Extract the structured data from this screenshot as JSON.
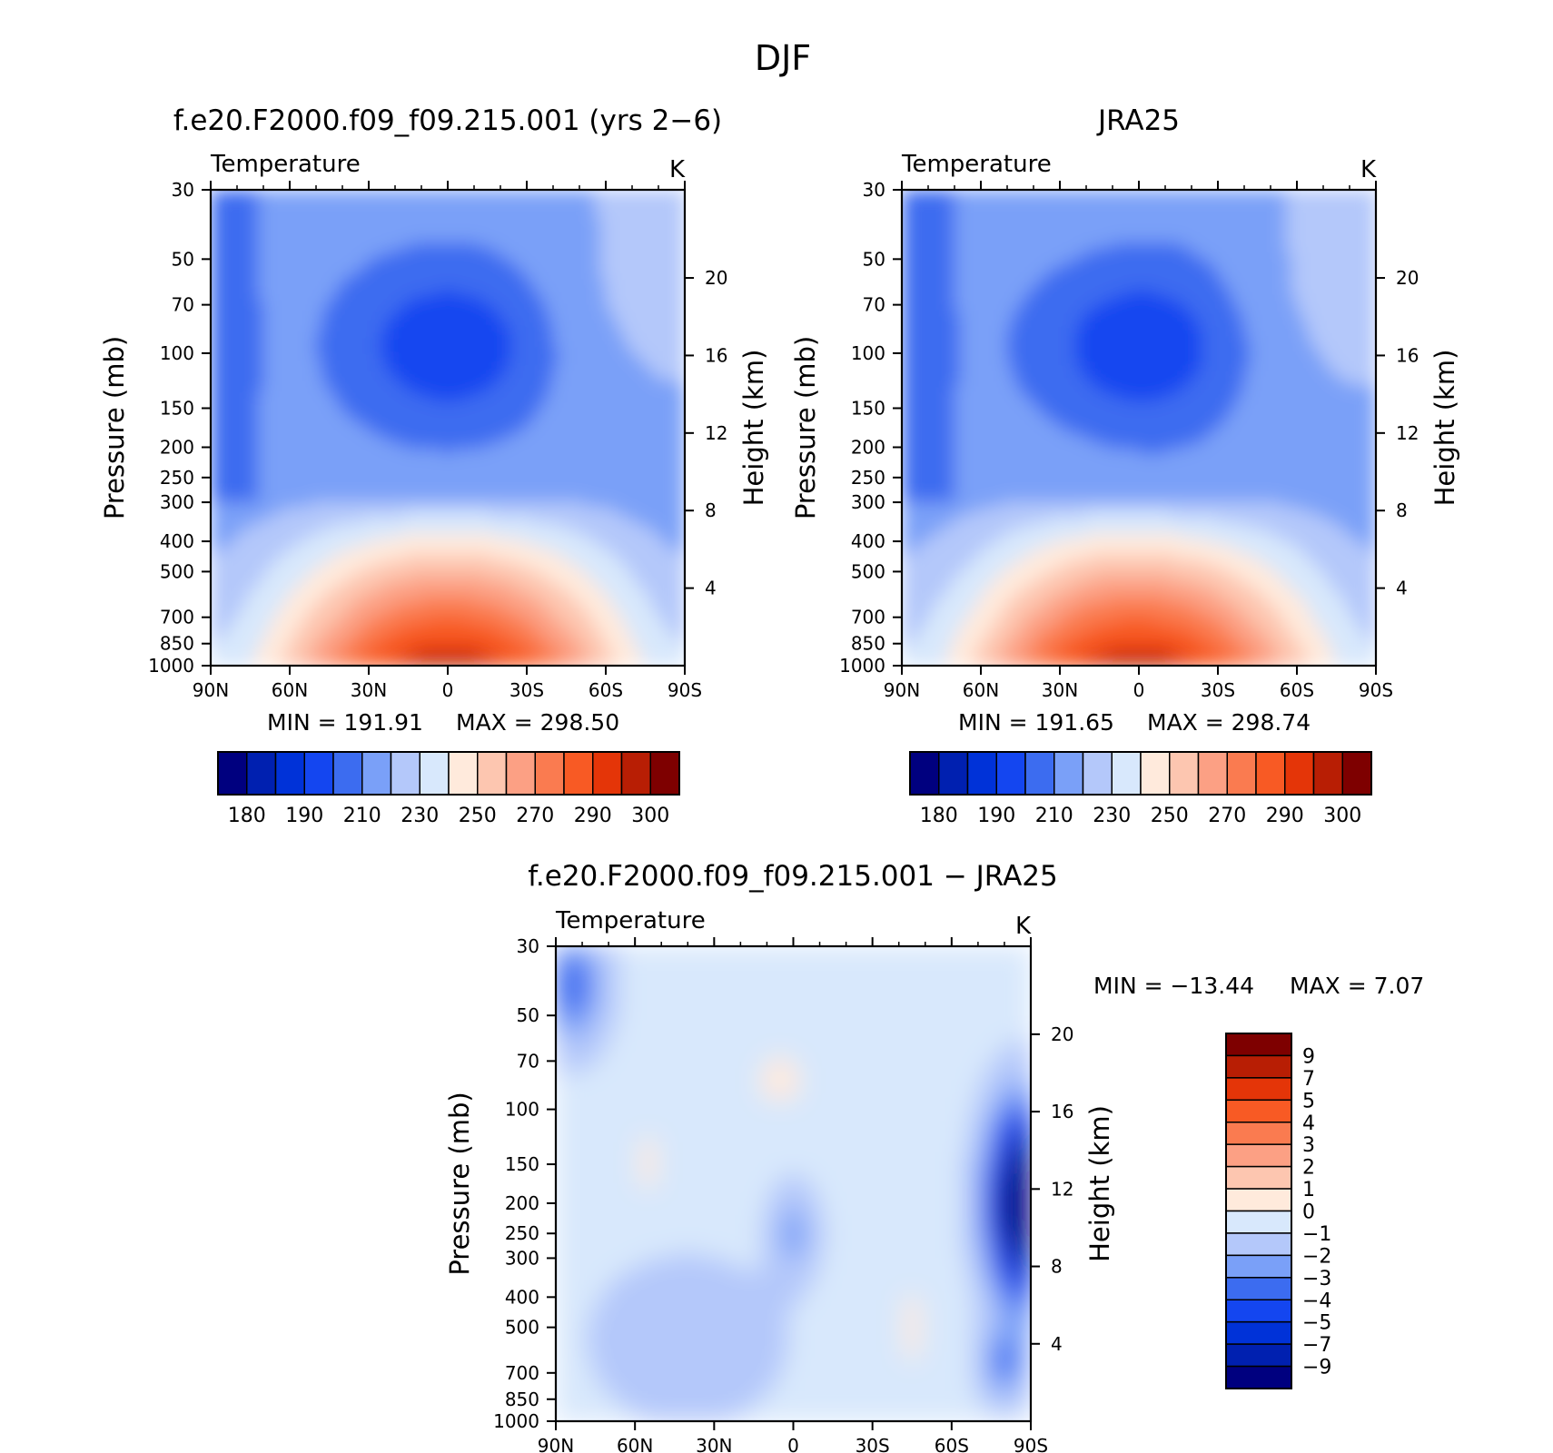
{
  "figure": {
    "title": "DJF"
  },
  "chart_data": [
    {
      "type": "contour",
      "title": "f.e20.F2000.f09_f09.215.001 (yrs 2−6)",
      "left_string": "Temperature",
      "right_string": "K",
      "ylabel": "Pressure (mb)",
      "ylabel_right": "Height (km)",
      "x_ticks": [
        "90N",
        "60N",
        "30N",
        "0",
        "30S",
        "60S",
        "90S"
      ],
      "x_values": [
        90,
        60,
        30,
        0,
        -30,
        -60,
        -90
      ],
      "y_ticks": [
        30,
        50,
        70,
        100,
        150,
        200,
        250,
        300,
        400,
        500,
        700,
        850,
        1000
      ],
      "height_ticks": [
        20,
        16,
        12,
        8,
        4
      ],
      "ylim": [
        1000,
        30
      ],
      "y_scale": "log",
      "min_label": "MIN = 191.91",
      "max_label": "MAX = 298.50",
      "min": 191.91,
      "max": 298.5,
      "colorbar": {
        "orientation": "horizontal",
        "levels": [
          180,
          190,
          210,
          230,
          250,
          270,
          290,
          300
        ],
        "colors": [
          "#00007f",
          "#0020b0",
          "#0032d8",
          "#1446f0",
          "#3c6cf0",
          "#7aa0f8",
          "#b4c8fa",
          "#d8e8fc",
          "#ffeadc",
          "#fdc6b0",
          "#fca084",
          "#fa7b50",
          "#f85a24",
          "#e43508",
          "#b81e04",
          "#7e0000"
        ]
      }
    },
    {
      "type": "contour",
      "title": "JRA25",
      "left_string": "Temperature",
      "right_string": "K",
      "ylabel": "Pressure (mb)",
      "ylabel_right": "Height (km)",
      "x_ticks": [
        "90N",
        "60N",
        "30N",
        "0",
        "30S",
        "60S",
        "90S"
      ],
      "x_values": [
        90,
        60,
        30,
        0,
        -30,
        -60,
        -90
      ],
      "y_ticks": [
        30,
        50,
        70,
        100,
        150,
        200,
        250,
        300,
        400,
        500,
        700,
        850,
        1000
      ],
      "height_ticks": [
        20,
        16,
        12,
        8,
        4
      ],
      "ylim": [
        1000,
        30
      ],
      "y_scale": "log",
      "min_label": "MIN = 191.65",
      "max_label": "MAX = 298.74",
      "min": 191.65,
      "max": 298.74,
      "colorbar": {
        "orientation": "horizontal",
        "levels": [
          180,
          190,
          210,
          230,
          250,
          270,
          290,
          300
        ],
        "colors": [
          "#00007f",
          "#0020b0",
          "#0032d8",
          "#1446f0",
          "#3c6cf0",
          "#7aa0f8",
          "#b4c8fa",
          "#d8e8fc",
          "#ffeadc",
          "#fdc6b0",
          "#fca084",
          "#fa7b50",
          "#f85a24",
          "#e43508",
          "#b81e04",
          "#7e0000"
        ]
      }
    },
    {
      "type": "contour",
      "title": "f.e20.F2000.f09_f09.215.001 − JRA25",
      "left_string": "Temperature",
      "right_string": "K",
      "ylabel": "Pressure (mb)",
      "ylabel_right": "Height (km)",
      "x_ticks": [
        "90N",
        "60N",
        "30N",
        "0",
        "30S",
        "60S",
        "90S"
      ],
      "x_values": [
        90,
        60,
        30,
        0,
        -30,
        -60,
        -90
      ],
      "y_ticks": [
        30,
        50,
        70,
        100,
        150,
        200,
        250,
        300,
        400,
        500,
        700,
        850,
        1000
      ],
      "height_ticks": [
        20,
        16,
        12,
        8,
        4
      ],
      "ylim": [
        1000,
        30
      ],
      "y_scale": "log",
      "min_label": "MIN = −13.44",
      "max_label": "MAX =    7.07",
      "min": -13.44,
      "max": 7.07,
      "colorbar": {
        "orientation": "vertical",
        "levels": [
          "9",
          "7",
          "5",
          "4",
          "3",
          "2",
          "1",
          "0",
          "−1",
          "−2",
          "−3",
          "−4",
          "−5",
          "−7",
          "−9"
        ],
        "colors": [
          "#7e0000",
          "#b81e04",
          "#e43508",
          "#f85a24",
          "#fa7b50",
          "#fca084",
          "#fdc6b0",
          "#ffeadc",
          "#d8e8fc",
          "#b4c8fa",
          "#7aa0f8",
          "#3c6cf0",
          "#1446f0",
          "#0032d8",
          "#0020b0",
          "#00007f"
        ]
      }
    }
  ]
}
